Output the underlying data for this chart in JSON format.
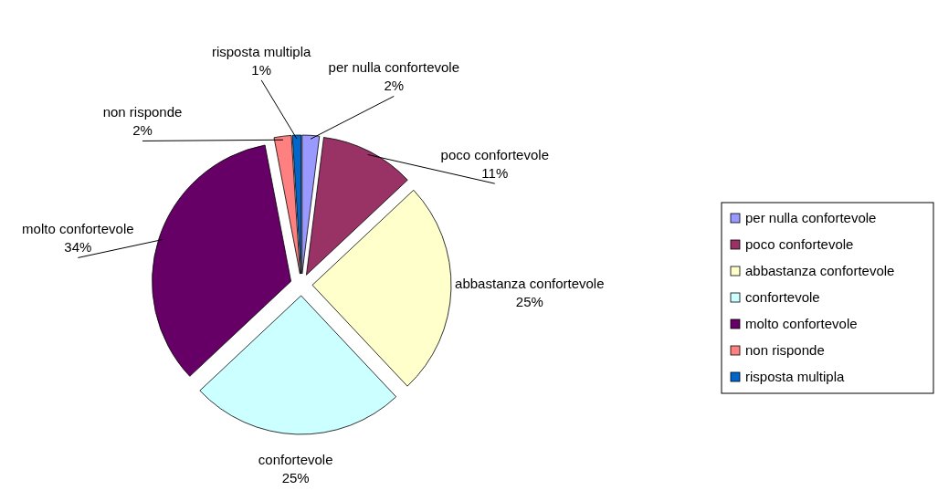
{
  "chart_data": {
    "type": "pie",
    "categories": [
      "per nulla confortevole",
      "poco confortevole",
      "abbastanza confortevole",
      "confortevole",
      "molto confortevole",
      "non risponde",
      "risposta multipla"
    ],
    "values": [
      2,
      11,
      25,
      25,
      34,
      2,
      1
    ],
    "colors": [
      "#9999ff",
      "#993366",
      "#ffffcc",
      "#ccffff",
      "#660066",
      "#ff8080",
      "#0066cc"
    ],
    "value_labels": [
      "2%",
      "11%",
      "25%",
      "25%",
      "34%",
      "2%",
      "1%"
    ],
    "legend": "right"
  }
}
